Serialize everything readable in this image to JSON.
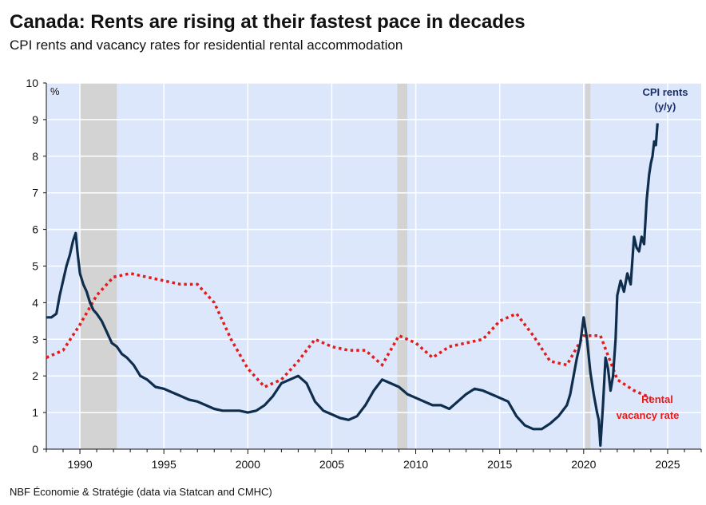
{
  "header": {
    "title": "Canada: Rents are rising at their fastest pace in decades",
    "subtitle": "CPI rents and vacancy rates for residential rental accommodation"
  },
  "footer": {
    "source": "NBF Économie & Stratégie (data via Statcan and CMHC)"
  },
  "colors": {
    "plot_bg": "#dde7fb",
    "recession": "#d3d3d3",
    "cpi": "#0f2d4d",
    "vacancy": "#e31b1b",
    "grid": "#ffffff",
    "cpi_label": "#1a2f6b"
  },
  "chart_data": {
    "type": "line",
    "title": "Canada: Rents are rising at their fastest pace in decades",
    "subtitle": "CPI rents and vacancy rates for residential rental accommodation",
    "unit_label": "%",
    "xlim": [
      1988,
      2027
    ],
    "ylim": [
      0,
      10
    ],
    "x_ticks": [
      1990,
      1995,
      2000,
      2005,
      2010,
      2015,
      2020,
      2025
    ],
    "y_ticks": [
      0,
      1,
      2,
      3,
      4,
      5,
      6,
      7,
      8,
      9,
      10
    ],
    "grid": true,
    "recessions": [
      [
        1990.0,
        1992.2
      ],
      [
        2008.9,
        2009.5
      ],
      [
        2020.1,
        2020.4
      ]
    ],
    "series": [
      {
        "name": "CPI rents (y/y)",
        "label_lines": [
          "CPI rents",
          "(y/y)"
        ],
        "style": "solid",
        "x": [
          1988.0,
          1988.3,
          1988.6,
          1988.8,
          1989.0,
          1989.2,
          1989.4,
          1989.6,
          1989.75,
          1989.85,
          1990.0,
          1990.2,
          1990.4,
          1990.6,
          1990.8,
          1991.0,
          1991.3,
          1991.6,
          1991.9,
          1992.2,
          1992.5,
          1992.8,
          1993.2,
          1993.6,
          1994.0,
          1994.5,
          1995.0,
          1995.5,
          1996.0,
          1996.5,
          1997.0,
          1997.5,
          1998.0,
          1998.5,
          1999.0,
          1999.5,
          2000.0,
          2000.5,
          2001.0,
          2001.5,
          2002.0,
          2002.5,
          2003.0,
          2003.5,
          2004.0,
          2004.5,
          2005.0,
          2005.5,
          2006.0,
          2006.5,
          2007.0,
          2007.5,
          2008.0,
          2008.5,
          2009.0,
          2009.5,
          2010.0,
          2010.5,
          2011.0,
          2011.5,
          2012.0,
          2012.5,
          2013.0,
          2013.5,
          2014.0,
          2014.5,
          2015.0,
          2015.5,
          2016.0,
          2016.5,
          2017.0,
          2017.5,
          2018.0,
          2018.5,
          2019.0,
          2019.2,
          2019.4,
          2019.6,
          2019.8,
          2020.0,
          2020.2,
          2020.4,
          2020.6,
          2020.8,
          2020.9,
          2021.0,
          2021.15,
          2021.3,
          2021.45,
          2021.6,
          2021.75,
          2021.9,
          2022.0,
          2022.2,
          2022.4,
          2022.6,
          2022.8,
          2023.0,
          2023.15,
          2023.3,
          2023.45,
          2023.6,
          2023.75,
          2023.9,
          2024.0,
          2024.1,
          2024.2,
          2024.3,
          2024.4
        ],
        "values": [
          3.6,
          3.6,
          3.7,
          4.2,
          4.6,
          5.0,
          5.3,
          5.7,
          5.9,
          5.4,
          4.8,
          4.5,
          4.3,
          4.0,
          3.8,
          3.7,
          3.5,
          3.2,
          2.9,
          2.8,
          2.6,
          2.5,
          2.3,
          2.0,
          1.9,
          1.7,
          1.65,
          1.55,
          1.45,
          1.35,
          1.3,
          1.2,
          1.1,
          1.05,
          1.05,
          1.05,
          1.0,
          1.05,
          1.2,
          1.45,
          1.8,
          1.9,
          2.0,
          1.8,
          1.3,
          1.05,
          0.95,
          0.85,
          0.8,
          0.9,
          1.2,
          1.6,
          1.9,
          1.8,
          1.7,
          1.5,
          1.4,
          1.3,
          1.2,
          1.2,
          1.1,
          1.3,
          1.5,
          1.65,
          1.6,
          1.5,
          1.4,
          1.3,
          0.9,
          0.65,
          0.55,
          0.55,
          0.7,
          0.9,
          1.2,
          1.5,
          2.0,
          2.5,
          2.9,
          3.6,
          3.0,
          2.1,
          1.5,
          1.0,
          0.8,
          0.1,
          1.2,
          2.5,
          2.2,
          1.6,
          2.0,
          3.0,
          4.2,
          4.6,
          4.3,
          4.8,
          4.5,
          5.8,
          5.5,
          5.4,
          5.8,
          5.6,
          6.8,
          7.5,
          7.8,
          8.0,
          8.4,
          8.3,
          8.9
        ]
      },
      {
        "name": "Rental vacancy rate",
        "label_lines": [
          "Rental",
          "vacancy rate"
        ],
        "style": "dotted",
        "x": [
          1988.0,
          1989.0,
          1990.0,
          1991.0,
          1992.0,
          1993.0,
          1994.0,
          1995.0,
          1996.0,
          1997.0,
          1998.0,
          1999.0,
          2000.0,
          2001.0,
          2002.0,
          2003.0,
          2004.0,
          2005.0,
          2006.0,
          2007.0,
          2008.0,
          2009.0,
          2010.0,
          2011.0,
          2012.0,
          2013.0,
          2014.0,
          2015.0,
          2016.0,
          2017.0,
          2018.0,
          2019.0,
          2020.0,
          2021.0,
          2022.0,
          2023.0,
          2024.0
        ],
        "values": [
          2.5,
          2.7,
          3.4,
          4.2,
          4.7,
          4.8,
          4.7,
          4.6,
          4.5,
          4.5,
          4.0,
          3.0,
          2.2,
          1.7,
          1.9,
          2.4,
          3.0,
          2.8,
          2.7,
          2.7,
          2.3,
          3.1,
          2.9,
          2.5,
          2.8,
          2.9,
          3.0,
          3.5,
          3.7,
          3.1,
          2.4,
          2.3,
          3.1,
          3.1,
          1.9,
          1.6,
          1.4
        ]
      }
    ]
  }
}
